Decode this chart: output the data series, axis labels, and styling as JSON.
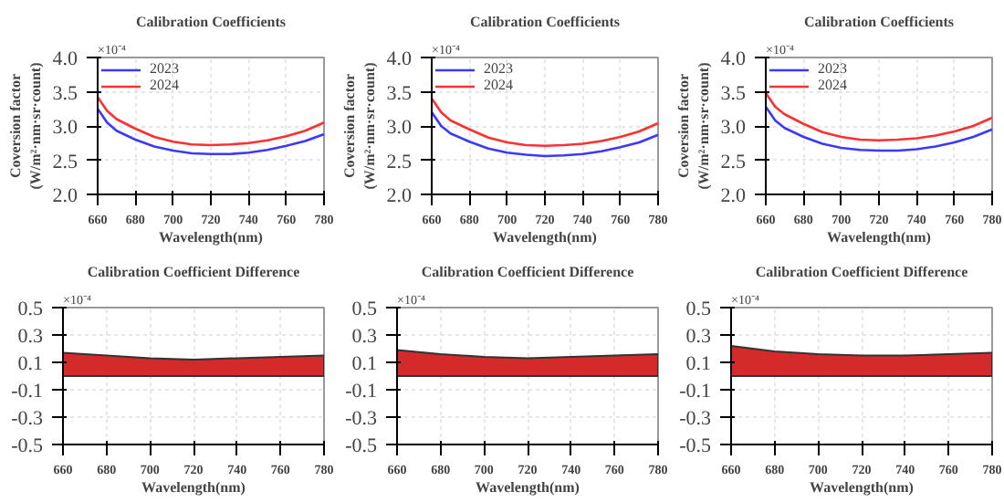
{
  "chart_data": [
    {
      "type": "line",
      "title": "Calibration Coefficients",
      "xlabel": "Wavelength(nm)",
      "ylabel": "Coversion factor\n(W/m²·nm·sr·count)",
      "annotations": [
        "×10⁻⁴"
      ],
      "x": [
        660,
        665,
        670,
        680,
        690,
        700,
        710,
        720,
        730,
        740,
        750,
        760,
        770,
        780
      ],
      "xlim": [
        660,
        780
      ],
      "xticks": [
        660,
        680,
        700,
        720,
        740,
        760,
        780
      ],
      "ylim": [
        2,
        4
      ],
      "yticks": [
        {
          "value": 2,
          "label": "2.0"
        },
        {
          "value": 2.5,
          "label": "2.5"
        },
        {
          "value": 3,
          "label": "3.0"
        },
        {
          "value": 3.5,
          "label": "3.5"
        },
        {
          "value": 4,
          "label": "4.0"
        }
      ],
      "grid": true,
      "legend": "top left",
      "series": [
        {
          "name": "2023",
          "color": "#3a3aff",
          "values": [
            3.25,
            3.05,
            2.93,
            2.8,
            2.7,
            2.64,
            2.6,
            2.59,
            2.59,
            2.61,
            2.65,
            2.71,
            2.78,
            2.88
          ]
        },
        {
          "name": "2024",
          "color": "#ff3030",
          "values": [
            3.42,
            3.22,
            3.1,
            2.96,
            2.84,
            2.77,
            2.73,
            2.72,
            2.73,
            2.75,
            2.79,
            2.85,
            2.93,
            3.05
          ]
        }
      ]
    },
    {
      "type": "line",
      "title": "Calibration Coefficients",
      "xlabel": "Wavelength(nm)",
      "ylabel": "Coversion factor\n(W/m²·nm·sr·count)",
      "annotations": [
        "×10⁻⁴"
      ],
      "x": [
        660,
        665,
        670,
        680,
        690,
        700,
        710,
        720,
        730,
        740,
        750,
        760,
        770,
        780
      ],
      "xlim": [
        660,
        780
      ],
      "xticks": [
        660,
        680,
        700,
        720,
        740,
        760,
        780
      ],
      "ylim": [
        2,
        4
      ],
      "yticks": [
        {
          "value": 2,
          "label": "2.0"
        },
        {
          "value": 2.5,
          "label": "2.5"
        },
        {
          "value": 3,
          "label": "3.0"
        },
        {
          "value": 3.5,
          "label": "3.5"
        },
        {
          "value": 4,
          "label": "4.0"
        }
      ],
      "grid": true,
      "legend": "top left",
      "series": [
        {
          "name": "2023",
          "color": "#3a3aff",
          "values": [
            3.2,
            3.0,
            2.89,
            2.77,
            2.67,
            2.61,
            2.58,
            2.56,
            2.57,
            2.59,
            2.63,
            2.69,
            2.76,
            2.87
          ]
        },
        {
          "name": "2024",
          "color": "#ff3030",
          "values": [
            3.4,
            3.2,
            3.08,
            2.95,
            2.83,
            2.76,
            2.72,
            2.71,
            2.72,
            2.74,
            2.78,
            2.84,
            2.92,
            3.04
          ]
        }
      ]
    },
    {
      "type": "line",
      "title": "Calibration Coefficients",
      "xlabel": "Wavelength(nm)",
      "ylabel": "Coversion factor\n(W/m²·nm·sr·count)",
      "annotations": [
        "×10⁻⁴"
      ],
      "x": [
        660,
        665,
        670,
        680,
        690,
        700,
        710,
        720,
        730,
        740,
        750,
        760,
        770,
        780
      ],
      "xlim": [
        660,
        780
      ],
      "xticks": [
        660,
        680,
        700,
        720,
        740,
        760,
        780
      ],
      "ylim": [
        2,
        4
      ],
      "yticks": [
        {
          "value": 2,
          "label": "2.0"
        },
        {
          "value": 2.5,
          "label": "2.5"
        },
        {
          "value": 3,
          "label": "3.0"
        },
        {
          "value": 3.5,
          "label": "3.5"
        },
        {
          "value": 4,
          "label": "4.0"
        }
      ],
      "grid": true,
      "legend": "top left",
      "series": [
        {
          "name": "2023",
          "color": "#3a3aff",
          "values": [
            3.28,
            3.08,
            2.97,
            2.84,
            2.74,
            2.68,
            2.65,
            2.64,
            2.64,
            2.66,
            2.7,
            2.76,
            2.84,
            2.95
          ]
        },
        {
          "name": "2024",
          "color": "#ff3030",
          "values": [
            3.48,
            3.28,
            3.17,
            3.03,
            2.91,
            2.84,
            2.8,
            2.79,
            2.8,
            2.82,
            2.86,
            2.92,
            3.0,
            3.12
          ]
        }
      ]
    },
    {
      "type": "area",
      "title": "Calibration Coefficient Difference",
      "xlabel": "Wavelength(nm)",
      "annotations": [
        "×10⁻⁴"
      ],
      "x": [
        660,
        680,
        700,
        720,
        740,
        760,
        780
      ],
      "xlim": [
        660,
        780
      ],
      "xticks": [
        660,
        680,
        700,
        720,
        740,
        760,
        780
      ],
      "ylim": [
        -0.5,
        0.5
      ],
      "yticks": [
        -0.5,
        -0.3,
        -0.1,
        0.1,
        0.3,
        0.5
      ],
      "grid": true,
      "series": [
        {
          "color": "#d42a2a",
          "values": [
            0.17,
            0.15,
            0.13,
            0.12,
            0.13,
            0.14,
            0.15
          ]
        }
      ]
    },
    {
      "type": "area",
      "title": "Calibration Coefficient Difference",
      "xlabel": "Wavelength(nm)",
      "annotations": [
        "×10⁻⁴"
      ],
      "x": [
        660,
        680,
        700,
        720,
        740,
        760,
        780
      ],
      "xlim": [
        660,
        780
      ],
      "xticks": [
        660,
        680,
        700,
        720,
        740,
        760,
        780
      ],
      "ylim": [
        -0.5,
        0.5
      ],
      "yticks": [
        -0.5,
        -0.3,
        -0.1,
        0.1,
        0.3,
        0.5
      ],
      "grid": true,
      "series": [
        {
          "color": "#d42a2a",
          "values": [
            0.19,
            0.16,
            0.14,
            0.13,
            0.14,
            0.15,
            0.16
          ]
        }
      ]
    },
    {
      "type": "area",
      "title": "Calibration Coefficient Difference",
      "xlabel": "Wavelength(nm)",
      "annotations": [
        "×10⁻⁴"
      ],
      "x": [
        660,
        680,
        700,
        720,
        740,
        760,
        780
      ],
      "xlim": [
        660,
        780
      ],
      "xticks": [
        660,
        680,
        700,
        720,
        740,
        760,
        780
      ],
      "ylim": [
        -0.5,
        0.5
      ],
      "yticks": [
        -0.5,
        -0.3,
        -0.1,
        0.1,
        0.3,
        0.5
      ],
      "grid": true,
      "series": [
        {
          "color": "#d42a2a",
          "values": [
            0.22,
            0.18,
            0.16,
            0.15,
            0.15,
            0.16,
            0.17
          ]
        }
      ]
    }
  ]
}
